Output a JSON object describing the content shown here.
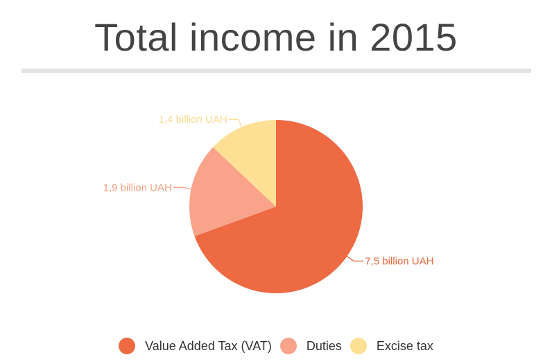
{
  "title": "Total income in 2015",
  "chart_data": {
    "type": "pie",
    "title": "Total income in 2015",
    "series": [
      {
        "name": "Value Added Tax (VAT)",
        "value": 7.5,
        "label": "7,5 billion UAH",
        "color": "#ed6a43",
        "label_color": "#e9683d"
      },
      {
        "name": "Duties",
        "value": 1.9,
        "label": "1,9 billion UAH",
        "color": "#f9a38a",
        "label_color": "#f7a084"
      },
      {
        "name": "Excise tax",
        "value": 1.4,
        "label": "1,4 billion UAH",
        "color": "#fee094",
        "label_color": "#fbdc8c"
      }
    ],
    "legend_position": "bottom"
  }
}
